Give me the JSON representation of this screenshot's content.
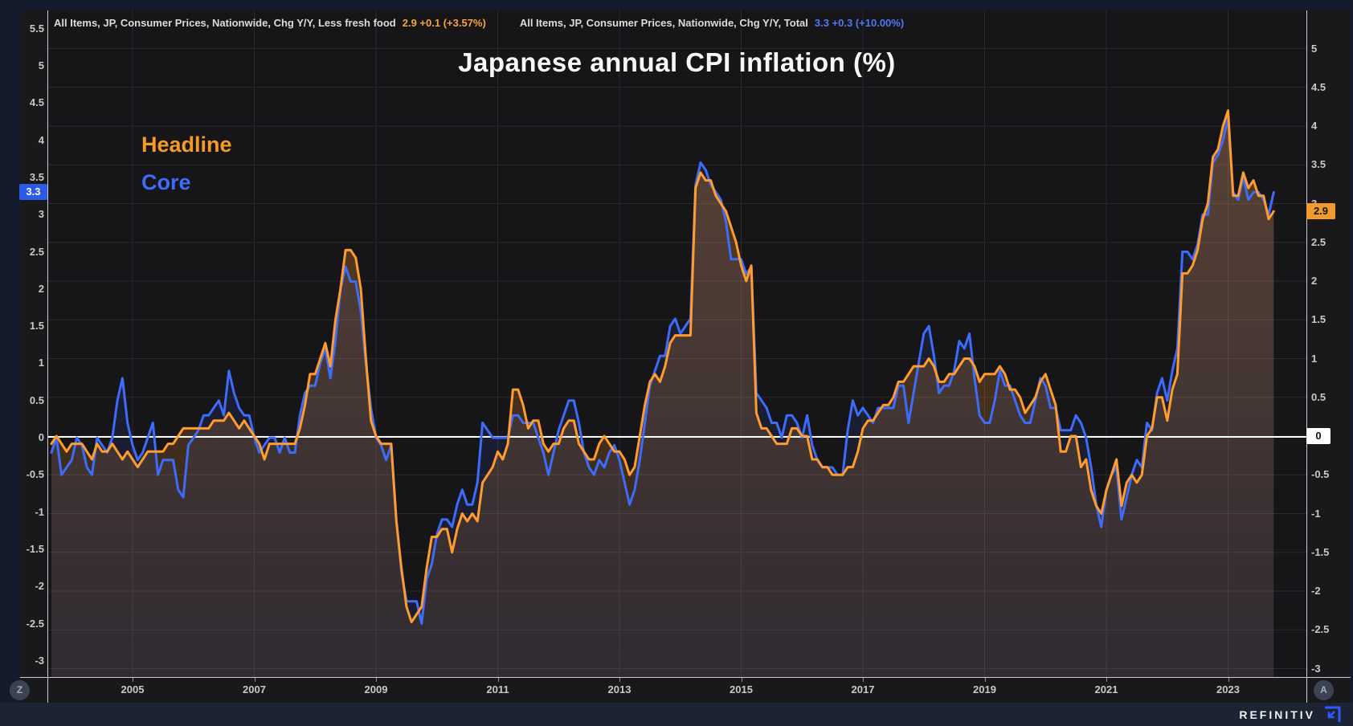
{
  "header": {
    "series1_label": "All Items, JP, Consumer Prices, Nationwide, Chg Y/Y, Less fresh food",
    "series1_values": "2.9  +0.1 (+3.57%)",
    "series2_label": "All Items, JP, Consumer Prices, Nationwide, Chg Y/Y, Total",
    "series2_values": "3.3  +0.3 (+10.00%)"
  },
  "title": "Japanese annual CPI inflation (%)",
  "legend": [
    {
      "label": "Headline",
      "color": "#f59a28"
    },
    {
      "label": "Core",
      "color": "#3d6bfa"
    }
  ],
  "badges": {
    "left_core": "3.3",
    "right_headline": "2.9",
    "right_zero": "0"
  },
  "buttons": {
    "z": "Z",
    "a": "A"
  },
  "footer": {
    "brand": "REFINITIV"
  },
  "colors": {
    "headline_line": "#ff9c2d",
    "core_line": "#3d6bfa",
    "grid": "#2b2b2e",
    "zero_line": "#ffffff",
    "plot_bg": "#161619",
    "headline_fill": "rgba(255,152,40,0.30)",
    "headline_fill_bottom": "rgba(255,152,40,0.10)",
    "core_fill": "rgba(70,110,255,0.10)"
  },
  "axes": {
    "left_ticks": [
      5.5,
      5,
      4.5,
      4,
      3.5,
      3,
      2.5,
      2,
      1.5,
      1,
      0.5,
      0,
      -0.5,
      -1,
      -1.5,
      -2,
      -2.5,
      -3
    ],
    "right_ticks": [
      5,
      4.5,
      4,
      3.5,
      3,
      2.5,
      2,
      1.5,
      1,
      0.5,
      0,
      -0.5,
      -1,
      -1.5,
      -2,
      -2.5,
      -3
    ],
    "x_labels": [
      "2005",
      "2007",
      "2009",
      "2011",
      "2013",
      "2015",
      "2017",
      "2019",
      "2021",
      "2023"
    ],
    "left_badge_value": 3.3,
    "right_badge_value": 2.9
  },
  "chart_data": {
    "type": "line",
    "frequency": "monthly",
    "x_start": "2003-09",
    "x_end": "2023-10",
    "title": "Japanese annual CPI inflation (%)",
    "ylabel": "%",
    "left_axis_range": [
      -3.2,
      5.7
    ],
    "right_axis_range": [
      -3.1,
      5.5
    ],
    "grid": true,
    "legend_position": "top-left",
    "series": [
      {
        "name": "Headline",
        "description": "All Items, JP, Consumer Prices, Nationwide, Chg Y/Y, Less fresh food",
        "color": "#ff9c2d",
        "axis": "right",
        "last_value": 2.9,
        "change": "+0.1 (+3.57%)",
        "values": [
          -0.1,
          0.0,
          -0.1,
          -0.2,
          -0.1,
          -0.1,
          -0.1,
          -0.2,
          -0.3,
          -0.1,
          -0.2,
          -0.2,
          -0.1,
          -0.2,
          -0.3,
          -0.2,
          -0.3,
          -0.4,
          -0.3,
          -0.2,
          -0.2,
          -0.2,
          -0.2,
          -0.1,
          -0.1,
          0.0,
          0.1,
          0.1,
          0.1,
          0.1,
          0.1,
          0.1,
          0.2,
          0.2,
          0.2,
          0.3,
          0.2,
          0.1,
          0.2,
          0.1,
          0.0,
          -0.1,
          -0.3,
          -0.1,
          -0.1,
          -0.1,
          -0.1,
          -0.1,
          -0.1,
          0.1,
          0.4,
          0.8,
          0.8,
          1.0,
          1.2,
          0.9,
          1.5,
          1.9,
          2.4,
          2.4,
          2.3,
          1.9,
          1.0,
          0.2,
          0.0,
          -0.1,
          -0.1,
          -0.1,
          -1.1,
          -1.7,
          -2.2,
          -2.4,
          -2.3,
          -2.2,
          -1.7,
          -1.3,
          -1.3,
          -1.2,
          -1.2,
          -1.5,
          -1.2,
          -1.0,
          -1.1,
          -1.0,
          -1.1,
          -0.6,
          -0.5,
          -0.4,
          -0.2,
          -0.3,
          -0.1,
          0.6,
          0.6,
          0.4,
          0.1,
          0.2,
          0.2,
          -0.1,
          -0.2,
          -0.1,
          -0.1,
          0.1,
          0.2,
          0.2,
          -0.1,
          -0.2,
          -0.3,
          -0.3,
          -0.1,
          0.0,
          -0.1,
          -0.2,
          -0.2,
          -0.3,
          -0.5,
          -0.4,
          0.0,
          0.4,
          0.7,
          0.8,
          0.7,
          0.9,
          1.2,
          1.3,
          1.3,
          1.3,
          1.3,
          3.2,
          3.4,
          3.3,
          3.3,
          3.1,
          3.0,
          2.9,
          2.7,
          2.5,
          2.2,
          2.0,
          2.2,
          0.3,
          0.1,
          0.1,
          0.0,
          -0.1,
          -0.1,
          -0.1,
          0.1,
          0.1,
          0.0,
          0.0,
          -0.3,
          -0.3,
          -0.4,
          -0.4,
          -0.5,
          -0.5,
          -0.5,
          -0.4,
          -0.4,
          -0.2,
          0.1,
          0.2,
          0.2,
          0.3,
          0.4,
          0.4,
          0.5,
          0.7,
          0.7,
          0.8,
          0.9,
          0.9,
          0.9,
          1.0,
          0.9,
          0.7,
          0.7,
          0.8,
          0.8,
          0.9,
          1.0,
          1.0,
          0.9,
          0.7,
          0.8,
          0.8,
          0.8,
          0.9,
          0.8,
          0.6,
          0.6,
          0.5,
          0.3,
          0.4,
          0.5,
          0.7,
          0.8,
          0.6,
          0.4,
          -0.2,
          -0.2,
          0.0,
          0.0,
          -0.4,
          -0.3,
          -0.7,
          -0.9,
          -1.0,
          -0.7,
          -0.5,
          -0.3,
          -0.9,
          -0.6,
          -0.5,
          -0.6,
          -0.5,
          0.0,
          0.1,
          0.5,
          0.5,
          0.2,
          0.6,
          0.8,
          2.1,
          2.1,
          2.2,
          2.4,
          2.8,
          3.0,
          3.6,
          3.7,
          4.0,
          4.2,
          3.1,
          3.1,
          3.4,
          3.2,
          3.3,
          3.1,
          3.1,
          2.8,
          2.9
        ]
      },
      {
        "name": "Core",
        "description": "All Items, JP, Consumer Prices, Nationwide, Chg Y/Y, Total",
        "color": "#3d6bfa",
        "axis": "left",
        "last_value": 3.3,
        "change": "+0.3 (+10.00%)",
        "values": [
          -0.2,
          0.0,
          -0.5,
          -0.4,
          -0.3,
          0.0,
          -0.1,
          -0.4,
          -0.5,
          0.0,
          -0.1,
          -0.2,
          0.0,
          0.5,
          0.8,
          0.2,
          -0.1,
          -0.3,
          -0.2,
          0.0,
          0.2,
          -0.5,
          -0.3,
          -0.3,
          -0.3,
          -0.7,
          -0.8,
          -0.1,
          0.0,
          0.1,
          0.3,
          0.3,
          0.4,
          0.5,
          0.3,
          0.9,
          0.6,
          0.4,
          0.3,
          0.3,
          0.0,
          -0.2,
          -0.1,
          0.0,
          0.0,
          -0.2,
          0.0,
          -0.2,
          -0.2,
          0.3,
          0.6,
          0.7,
          0.7,
          1.0,
          1.2,
          0.8,
          1.3,
          2.0,
          2.3,
          2.1,
          2.1,
          1.7,
          1.0,
          0.4,
          0.0,
          -0.1,
          -0.3,
          -0.1,
          -1.1,
          -1.8,
          -2.2,
          -2.2,
          -2.2,
          -2.5,
          -1.9,
          -1.7,
          -1.3,
          -1.1,
          -1.1,
          -1.2,
          -0.9,
          -0.7,
          -0.9,
          -0.9,
          -0.6,
          0.2,
          0.1,
          0.0,
          0.0,
          0.0,
          0.0,
          0.3,
          0.3,
          0.2,
          0.2,
          0.2,
          0.0,
          -0.2,
          -0.5,
          -0.2,
          0.1,
          0.3,
          0.5,
          0.5,
          0.2,
          -0.2,
          -0.4,
          -0.5,
          -0.3,
          -0.4,
          -0.2,
          -0.1,
          -0.3,
          -0.6,
          -0.9,
          -0.7,
          -0.3,
          0.2,
          0.7,
          0.9,
          1.1,
          1.1,
          1.5,
          1.6,
          1.4,
          1.5,
          1.6,
          3.4,
          3.7,
          3.6,
          3.4,
          3.3,
          3.2,
          2.9,
          2.4,
          2.4,
          2.4,
          2.2,
          2.3,
          0.6,
          0.5,
          0.4,
          0.2,
          0.2,
          0.0,
          0.3,
          0.3,
          0.2,
          0.0,
          0.3,
          -0.1,
          -0.3,
          -0.4,
          -0.4,
          -0.4,
          -0.5,
          -0.5,
          0.1,
          0.5,
          0.3,
          0.4,
          0.3,
          0.2,
          0.4,
          0.4,
          0.4,
          0.4,
          0.7,
          0.7,
          0.2,
          0.6,
          1.0,
          1.4,
          1.5,
          1.1,
          0.6,
          0.7,
          0.7,
          0.9,
          1.3,
          1.2,
          1.4,
          0.8,
          0.3,
          0.2,
          0.2,
          0.5,
          0.9,
          0.7,
          0.7,
          0.5,
          0.3,
          0.2,
          0.2,
          0.5,
          0.8,
          0.7,
          0.4,
          0.4,
          0.1,
          0.1,
          0.1,
          0.3,
          0.2,
          0.0,
          -0.4,
          -0.9,
          -1.2,
          -0.7,
          -0.5,
          -0.4,
          -1.1,
          -0.8,
          -0.5,
          -0.3,
          -0.4,
          0.2,
          0.1,
          0.6,
          0.8,
          0.5,
          0.9,
          1.2,
          2.5,
          2.5,
          2.4,
          2.6,
          3.0,
          3.0,
          3.7,
          3.8,
          4.0,
          4.3,
          3.3,
          3.2,
          3.5,
          3.2,
          3.3,
          3.3,
          3.2,
          3.0,
          3.3
        ]
      }
    ]
  }
}
